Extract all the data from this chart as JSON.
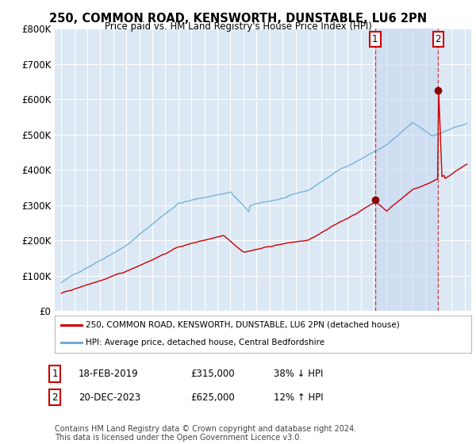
{
  "title": "250, COMMON ROAD, KENSWORTH, DUNSTABLE, LU6 2PN",
  "subtitle": "Price paid vs. HM Land Registry's House Price Index (HPI)",
  "ylim": [
    0,
    800000
  ],
  "yticks": [
    0,
    100000,
    200000,
    300000,
    400000,
    500000,
    600000,
    700000,
    800000
  ],
  "ytick_labels": [
    "£0",
    "£100K",
    "£200K",
    "£300K",
    "£400K",
    "£500K",
    "£600K",
    "£700K",
    "£800K"
  ],
  "background_color": "#ffffff",
  "plot_bg_color": "#dce9f5",
  "grid_color": "#ffffff",
  "hpi_color": "#6baed6",
  "price_color": "#cc0000",
  "dashed_color": "#cc0000",
  "marker_color": "#8b0000",
  "transaction1_x": 2019.12,
  "transaction1_y": 315000,
  "transaction1_label": "1",
  "transaction2_x": 2023.96,
  "transaction2_y": 625000,
  "transaction2_label": "2",
  "legend_line1": "250, COMMON ROAD, KENSWORTH, DUNSTABLE, LU6 2PN (detached house)",
  "legend_line2": "HPI: Average price, detached house, Central Bedfordshire",
  "note1_label": "1",
  "note1_date": "18-FEB-2019",
  "note1_price": "£315,000",
  "note1_change": "38% ↓ HPI",
  "note2_label": "2",
  "note2_date": "20-DEC-2023",
  "note2_price": "£625,000",
  "note2_change": "12% ↑ HPI",
  "footer": "Contains HM Land Registry data © Crown copyright and database right 2024.\nThis data is licensed under the Open Government Licence v3.0.",
  "xlim_left": 1994.5,
  "xlim_right": 2026.5,
  "shaded_region_start": 2019.12,
  "shaded_region_end": 2023.96
}
